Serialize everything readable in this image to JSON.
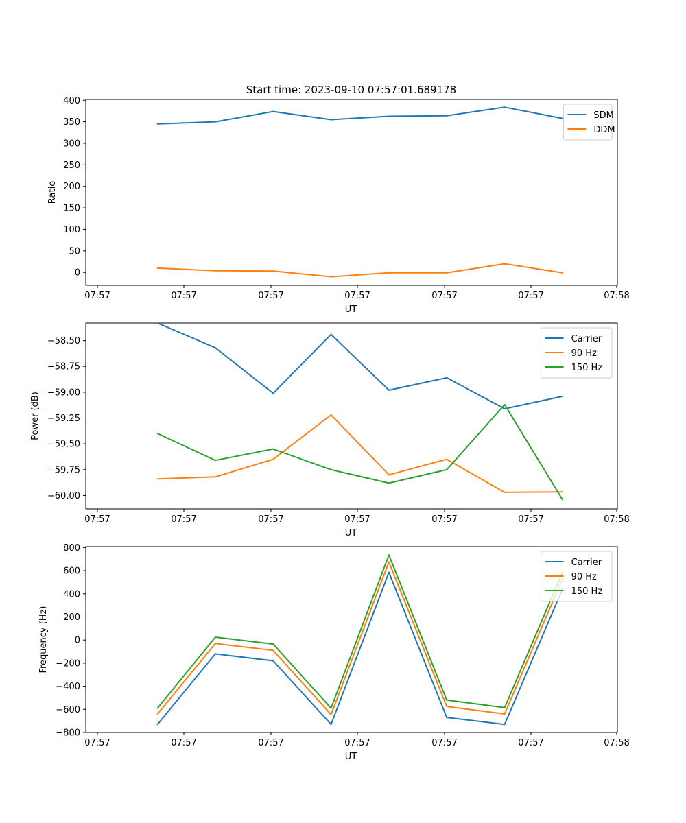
{
  "figure": {
    "title": "Start time: 2023-09-10 07:57:01.689178"
  },
  "chart_data": [
    {
      "type": "line",
      "title": "Start time: 2023-09-10 07:57:01.689178",
      "xlabel": "UT",
      "ylabel": "Ratio",
      "x_tick_labels": [
        "07:57",
        "07:57",
        "07:57",
        "07:57",
        "07:57",
        "07:57",
        "07:58"
      ],
      "y_ticks": [
        0,
        50,
        100,
        150,
        200,
        250,
        300,
        350,
        400
      ],
      "ylim": [
        -30,
        402
      ],
      "xlim": [
        -0.74,
        8.45
      ],
      "x": [
        0.5,
        1.5,
        2.5,
        3.5,
        4.5,
        5.5,
        6.5,
        7.5
      ],
      "legend_position": "top-right",
      "series": [
        {
          "name": "SDM",
          "color": "#1f77b4",
          "values": [
            345,
            350,
            374,
            355,
            363,
            364,
            384,
            358
          ]
        },
        {
          "name": "DDM",
          "color": "#ff7f0e",
          "values": [
            10,
            4,
            3,
            -10,
            -1,
            -1,
            20,
            -1
          ]
        }
      ]
    },
    {
      "type": "line",
      "xlabel": "UT",
      "ylabel": "Power (dB)",
      "x_tick_labels": [
        "07:57",
        "07:57",
        "07:57",
        "07:57",
        "07:57",
        "07:57",
        "07:58"
      ],
      "y_ticks": [
        -60.0,
        -59.75,
        -59.5,
        -59.25,
        -59.0,
        -58.75,
        -58.5
      ],
      "y_tick_labels": [
        "−60.00",
        "−59.75",
        "−59.50",
        "−59.25",
        "−59.00",
        "−58.75",
        "−58.50"
      ],
      "ylim": [
        -60.13,
        -58.33
      ],
      "xlim": [
        -0.74,
        8.45
      ],
      "x": [
        0.5,
        1.5,
        2.5,
        3.5,
        4.5,
        5.5,
        6.5,
        7.5
      ],
      "legend_position": "top-right",
      "series": [
        {
          "name": "Carrier",
          "color": "#1f77b4",
          "values": [
            -58.33,
            -58.57,
            -59.01,
            -58.44,
            -58.98,
            -58.86,
            -59.16,
            -59.04
          ]
        },
        {
          "name": "90 Hz",
          "color": "#ff7f0e",
          "values": [
            -59.84,
            -59.82,
            -59.65,
            -59.22,
            -59.8,
            -59.65,
            -59.97,
            -59.965
          ]
        },
        {
          "name": "150 Hz",
          "color": "#2ca02c",
          "values": [
            -59.4,
            -59.66,
            -59.55,
            -59.75,
            -59.88,
            -59.75,
            -59.12,
            -60.04
          ]
        }
      ]
    },
    {
      "type": "line",
      "xlabel": "UT",
      "ylabel": "Frequency (Hz)",
      "x_tick_labels": [
        "07:57",
        "07:57",
        "07:57",
        "07:57",
        "07:57",
        "07:57",
        "07:58"
      ],
      "y_ticks": [
        -800,
        -600,
        -400,
        -200,
        0,
        200,
        400,
        600,
        800
      ],
      "y_tick_labels": [
        "−800",
        "−600",
        "−400",
        "−200",
        "0",
        "200",
        "400",
        "600",
        "800"
      ],
      "ylim": [
        -800,
        808
      ],
      "xlim": [
        -0.74,
        8.45
      ],
      "x": [
        0.5,
        1.5,
        2.5,
        3.5,
        4.5,
        5.5,
        6.5,
        7.5
      ],
      "legend_position": "top-right",
      "series": [
        {
          "name": "Carrier",
          "color": "#1f77b4",
          "values": [
            -730,
            -120,
            -180,
            -730,
            585,
            -670,
            -730,
            440
          ]
        },
        {
          "name": "90 Hz",
          "color": "#ff7f0e",
          "values": [
            -640,
            -30,
            -90,
            -645,
            675,
            -575,
            -640,
            530
          ]
        },
        {
          "name": "150 Hz",
          "color": "#2ca02c",
          "values": [
            -590,
            25,
            -35,
            -590,
            735,
            -520,
            -585,
            585
          ]
        }
      ]
    }
  ]
}
